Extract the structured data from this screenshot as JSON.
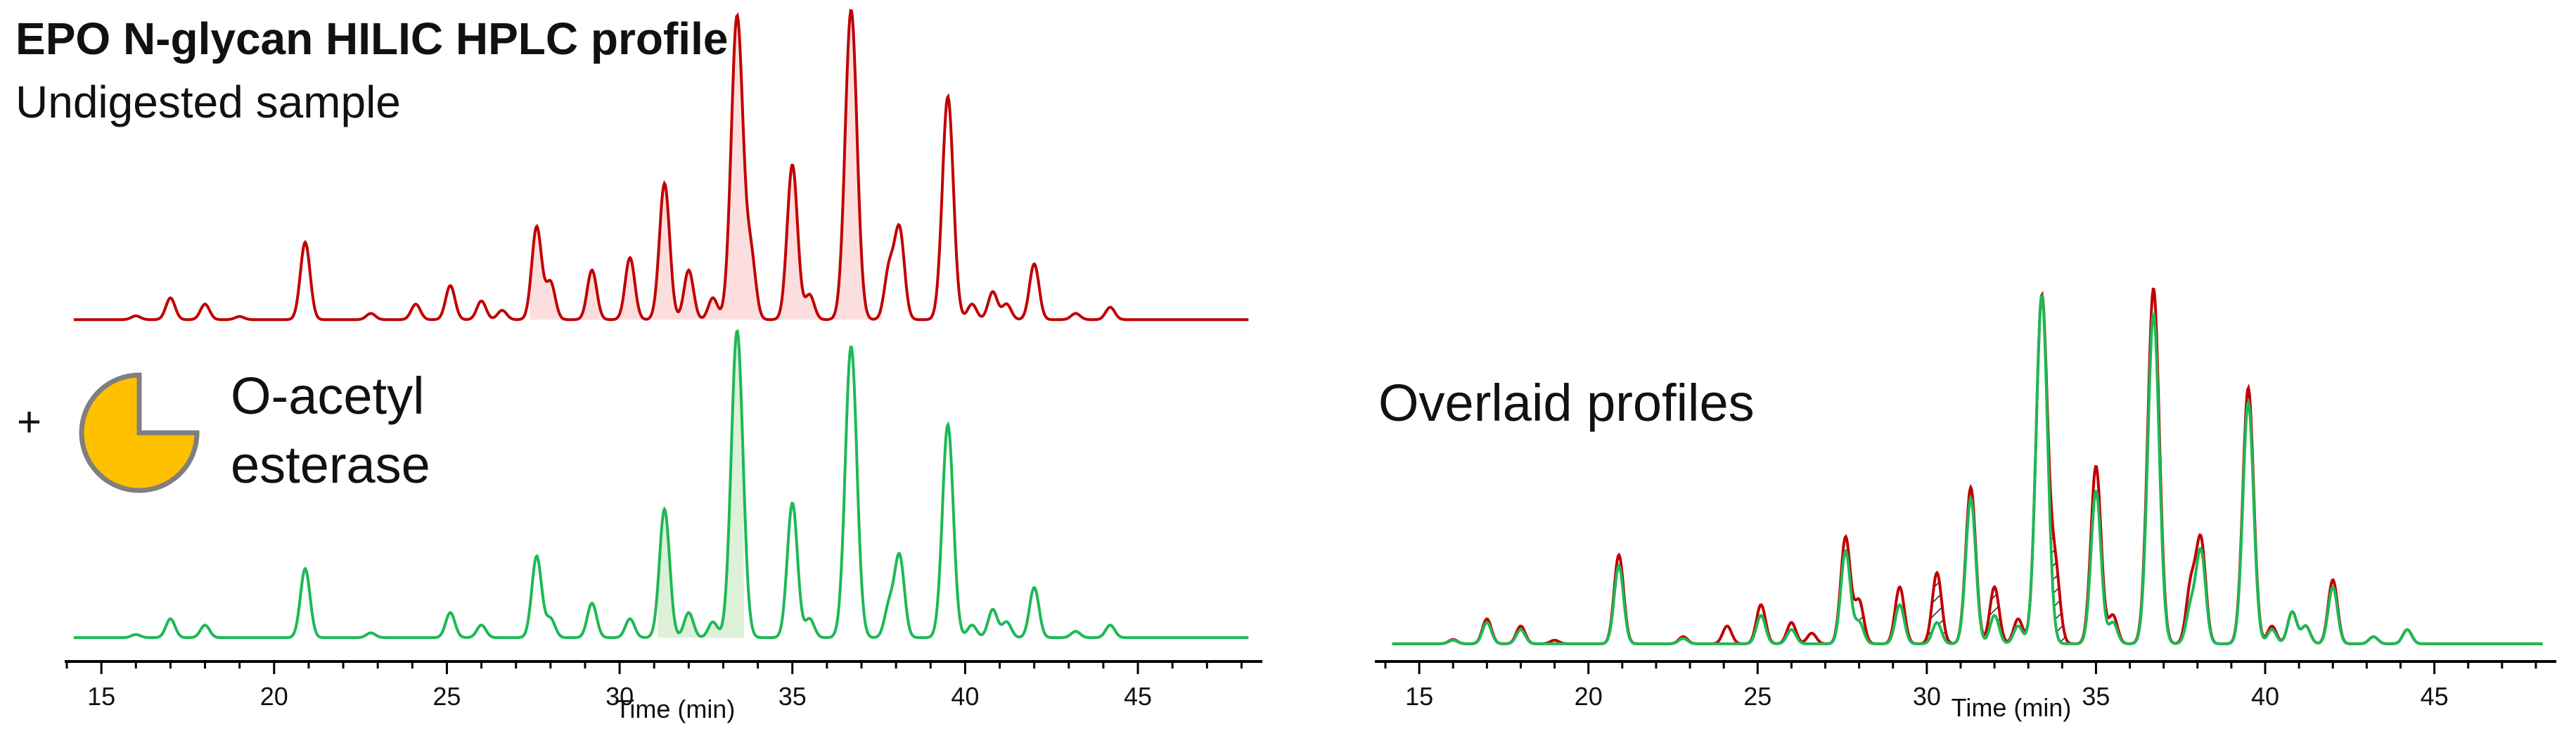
{
  "panel_left": {
    "title": "EPO N-glycan HILIC HPLC profile",
    "subtitle": "Undigested sample",
    "plus_sign": "+",
    "enzyme_label_line1": "O-acetyl",
    "enzyme_label_line2": "esterase",
    "enzyme_icon": "pac-man-enzyme-icon"
  },
  "panel_right": {
    "title": "Overlaid profiles"
  },
  "colors": {
    "undigested": "#c00000",
    "undigested_fill": "#fcdede",
    "digested": "#1db954",
    "digested_fill": "#ddf0d8",
    "enzyme_fill": "#ffc000",
    "enzyme_stroke": "#7f7f7f",
    "axis": "#000000"
  },
  "chart_data": [
    {
      "type": "line",
      "xlabel": "Time (min)",
      "ylabel": "",
      "xlim": [
        14,
        48.5
      ],
      "xticks": [
        15,
        20,
        25,
        30,
        35,
        40,
        45
      ],
      "grid": false,
      "series": [
        {
          "key": "undigested",
          "baseline": 0.02,
          "peaks": [
            {
              "t": 16.0,
              "h": 0.012
            },
            {
              "t": 17.0,
              "h": 0.07
            },
            {
              "t": 18.0,
              "h": 0.05
            },
            {
              "t": 19.0,
              "h": 0.01
            },
            {
              "t": 20.9,
              "h": 0.25
            },
            {
              "t": 22.8,
              "h": 0.02
            },
            {
              "t": 24.1,
              "h": 0.05
            },
            {
              "t": 25.1,
              "h": 0.11
            },
            {
              "t": 26.0,
              "h": 0.06
            },
            {
              "t": 26.6,
              "h": 0.03
            },
            {
              "t": 27.6,
              "h": 0.3
            },
            {
              "t": 28.0,
              "h": 0.12
            },
            {
              "t": 29.2,
              "h": 0.16
            },
            {
              "t": 30.3,
              "h": 0.2
            },
            {
              "t": 31.3,
              "h": 0.44
            },
            {
              "t": 32.0,
              "h": 0.16
            },
            {
              "t": 32.7,
              "h": 0.07
            },
            {
              "t": 33.4,
              "h": 0.98
            },
            {
              "t": 33.8,
              "h": 0.2
            },
            {
              "t": 35.0,
              "h": 0.5
            },
            {
              "t": 35.5,
              "h": 0.08
            },
            {
              "t": 36.7,
              "h": 1.0
            },
            {
              "t": 37.8,
              "h": 0.16
            },
            {
              "t": 38.1,
              "h": 0.29
            },
            {
              "t": 39.5,
              "h": 0.72
            },
            {
              "t": 40.2,
              "h": 0.05
            },
            {
              "t": 40.8,
              "h": 0.09
            },
            {
              "t": 41.2,
              "h": 0.05
            },
            {
              "t": 42.0,
              "h": 0.18
            },
            {
              "t": 43.2,
              "h": 0.02
            },
            {
              "t": 44.2,
              "h": 0.04
            }
          ]
        },
        {
          "key": "digested",
          "baseline": 0.02,
          "peaks": [
            {
              "t": 16.0,
              "h": 0.01
            },
            {
              "t": 17.0,
              "h": 0.06
            },
            {
              "t": 18.0,
              "h": 0.04
            },
            {
              "t": 20.9,
              "h": 0.22
            },
            {
              "t": 22.8,
              "h": 0.015
            },
            {
              "t": 25.1,
              "h": 0.08
            },
            {
              "t": 26.0,
              "h": 0.04
            },
            {
              "t": 27.6,
              "h": 0.26
            },
            {
              "t": 28.0,
              "h": 0.06
            },
            {
              "t": 29.2,
              "h": 0.11
            },
            {
              "t": 30.3,
              "h": 0.06
            },
            {
              "t": 31.3,
              "h": 0.41
            },
            {
              "t": 32.0,
              "h": 0.08
            },
            {
              "t": 32.7,
              "h": 0.05
            },
            {
              "t": 33.4,
              "h": 0.98
            },
            {
              "t": 35.0,
              "h": 0.43
            },
            {
              "t": 35.5,
              "h": 0.06
            },
            {
              "t": 36.7,
              "h": 0.93
            },
            {
              "t": 37.8,
              "h": 0.1
            },
            {
              "t": 38.1,
              "h": 0.26
            },
            {
              "t": 39.5,
              "h": 0.68
            },
            {
              "t": 40.2,
              "h": 0.04
            },
            {
              "t": 40.8,
              "h": 0.09
            },
            {
              "t": 41.2,
              "h": 0.05
            },
            {
              "t": 42.0,
              "h": 0.16
            },
            {
              "t": 43.2,
              "h": 0.02
            },
            {
              "t": 44.2,
              "h": 0.04
            }
          ]
        }
      ]
    },
    {
      "type": "line",
      "xlabel": "Time (min)",
      "ylabel": "",
      "xlim": [
        14,
        48.5
      ],
      "xticks": [
        15,
        20,
        25,
        30,
        35,
        40,
        45
      ],
      "grid": false,
      "series_keys": [
        "undigested",
        "digested"
      ],
      "hatched_difference_regions": [
        [
          28.0,
          29.0
        ],
        [
          30.0,
          31.0
        ],
        [
          31.8,
          32.9
        ],
        [
          33.6,
          34.6
        ]
      ]
    }
  ]
}
